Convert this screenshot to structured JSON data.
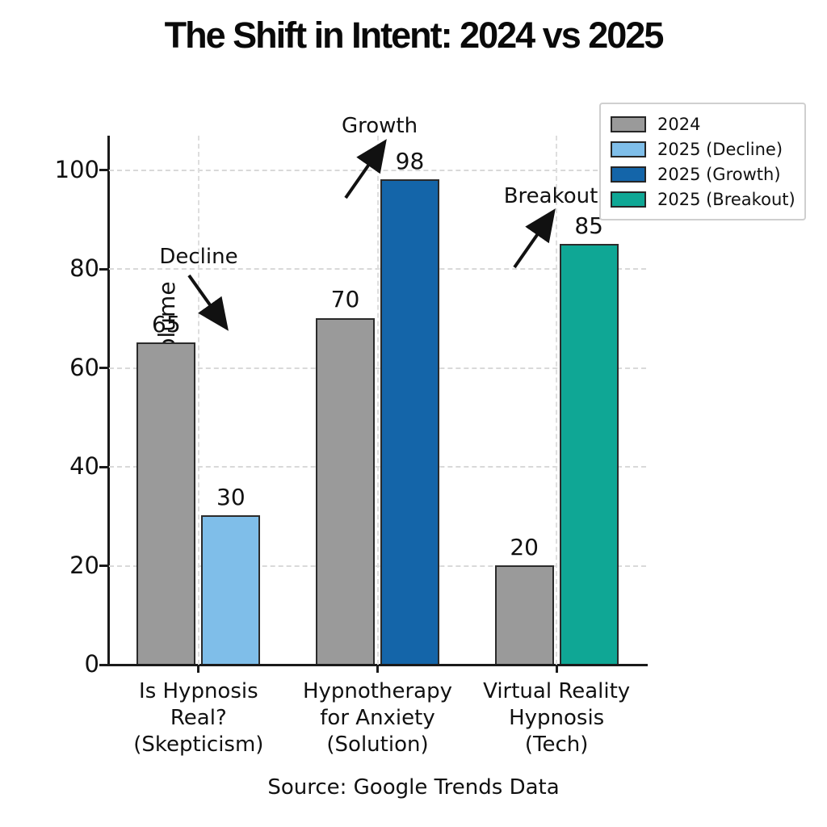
{
  "title": "The Shift in Intent: 2024 vs 2025",
  "source": "Source: Google Trends Data",
  "annotations": {
    "decline": "Decline",
    "growth": "Growth",
    "breakout": "Breakout"
  },
  "legend": {
    "items": [
      {
        "label": "2024",
        "color": "#9a9a9a"
      },
      {
        "label": "2025 (Decline)",
        "color": "#7fbee9"
      },
      {
        "label": "2025 (Growth)",
        "color": "#1465a9"
      },
      {
        "label": "2025 (Breakout)",
        "color": "#0fa795"
      }
    ]
  },
  "chart_data": {
    "type": "bar",
    "title": "The Shift in Intent: 2024 vs 2025",
    "xlabel": "",
    "ylabel": "Relative Search Volume",
    "ylim": [
      0,
      107
    ],
    "yticks": [
      0,
      20,
      40,
      60,
      80,
      100
    ],
    "grid": true,
    "legend_position": "upper right",
    "categories": [
      "Is Hypnosis\nReal?\n(Skepticism)",
      "Hypnotherapy\nfor Anxiety\n(Solution)",
      "Virtual Reality\nHypnosis\n(Tech)"
    ],
    "groups": [
      {
        "category": "Is Hypnosis\nReal?\n(Skepticism)",
        "bars": [
          {
            "series": "2024",
            "value": 65,
            "color": "#9a9a9a"
          },
          {
            "series": "2025 (Decline)",
            "value": 30,
            "color": "#7fbee9"
          }
        ],
        "annotation": "Decline"
      },
      {
        "category": "Hypnotherapy\nfor Anxiety\n(Solution)",
        "bars": [
          {
            "series": "2024",
            "value": 70,
            "color": "#9a9a9a"
          },
          {
            "series": "2025 (Growth)",
            "value": 98,
            "color": "#1465a9"
          }
        ],
        "annotation": "Growth"
      },
      {
        "category": "Virtual Reality\nHypnosis\n(Tech)",
        "bars": [
          {
            "series": "2024",
            "value": 20,
            "color": "#9a9a9a"
          },
          {
            "series": "2025 (Breakout)",
            "value": 85,
            "color": "#0fa795"
          }
        ],
        "annotation": "Breakout"
      }
    ],
    "source": "Source: Google Trends Data"
  }
}
